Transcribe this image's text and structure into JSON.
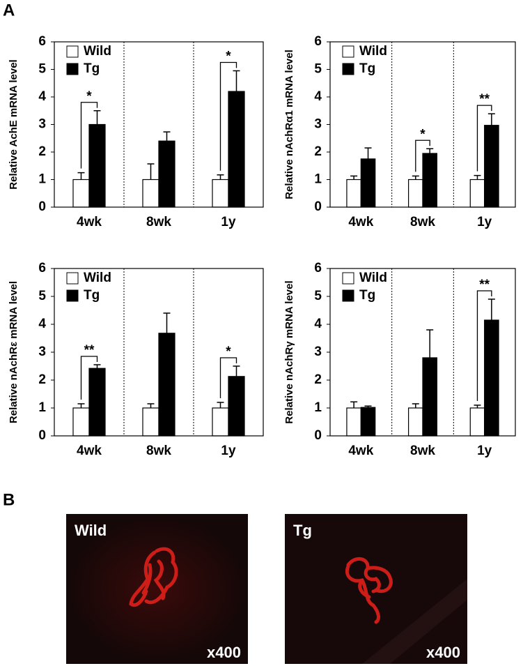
{
  "panel_labels": [
    "A",
    "B"
  ],
  "chart_data": [
    {
      "type": "bar",
      "ylabel": "Relative AchE mRNA level",
      "categories": [
        "4wk",
        "8wk",
        "1y"
      ],
      "series": [
        {
          "name": "Wild",
          "color": "#ffffff",
          "values": [
            1,
            1,
            1
          ],
          "errors": [
            0.25,
            0.57,
            0.17
          ]
        },
        {
          "name": "Tg",
          "color": "#000000",
          "values": [
            3.0,
            2.4,
            4.2
          ],
          "errors": [
            0.5,
            0.33,
            0.75
          ]
        }
      ],
      "annotations": [
        "*",
        null,
        "*"
      ],
      "ylim": [
        0,
        6
      ],
      "yticks": [
        0,
        1,
        2,
        3,
        4,
        5,
        6
      ],
      "grid": false
    },
    {
      "type": "bar",
      "ylabel": "Relative nAchRα1 mRNA level",
      "categories": [
        "4wk",
        "8wk",
        "1y"
      ],
      "series": [
        {
          "name": "Wild",
          "color": "#ffffff",
          "values": [
            1,
            1,
            1
          ],
          "errors": [
            0.13,
            0.13,
            0.15
          ]
        },
        {
          "name": "Tg",
          "color": "#000000",
          "values": [
            1.75,
            1.95,
            2.97
          ],
          "errors": [
            0.4,
            0.17,
            0.42
          ]
        }
      ],
      "annotations": [
        null,
        "*",
        "**"
      ],
      "ylim": [
        0,
        6
      ],
      "yticks": [
        0,
        1,
        2,
        3,
        4,
        5,
        6
      ],
      "grid": false
    },
    {
      "type": "bar",
      "ylabel": "Relative nAchRε mRNA level",
      "categories": [
        "4wk",
        "8wk",
        "1y"
      ],
      "series": [
        {
          "name": "Wild",
          "color": "#ffffff",
          "values": [
            1,
            1,
            1
          ],
          "errors": [
            0.15,
            0.15,
            0.2
          ]
        },
        {
          "name": "Tg",
          "color": "#000000",
          "values": [
            2.42,
            3.68,
            2.13
          ],
          "errors": [
            0.13,
            0.72,
            0.37
          ]
        }
      ],
      "annotations": [
        "**",
        null,
        "*"
      ],
      "ylim": [
        0,
        6
      ],
      "yticks": [
        0,
        1,
        2,
        3,
        4,
        5,
        6
      ],
      "grid": false
    },
    {
      "type": "bar",
      "ylabel": "Relative nAchRγ mRNA level",
      "categories": [
        "4wk",
        "8wk",
        "1y"
      ],
      "series": [
        {
          "name": "Wild",
          "color": "#ffffff",
          "values": [
            1,
            1,
            1
          ],
          "errors": [
            0.22,
            0.15,
            0.1
          ]
        },
        {
          "name": "Tg",
          "color": "#000000",
          "values": [
            1.02,
            2.8,
            4.15
          ],
          "errors": [
            0.05,
            1.0,
            0.75
          ]
        }
      ],
      "annotations": [
        null,
        null,
        "**"
      ],
      "ylim": [
        0,
        6
      ],
      "yticks": [
        0,
        1,
        2,
        3,
        4,
        5,
        6
      ],
      "grid": false
    }
  ],
  "images": [
    {
      "label": "Wild",
      "magnification": "x400"
    },
    {
      "label": "Tg",
      "magnification": "x400"
    }
  ]
}
